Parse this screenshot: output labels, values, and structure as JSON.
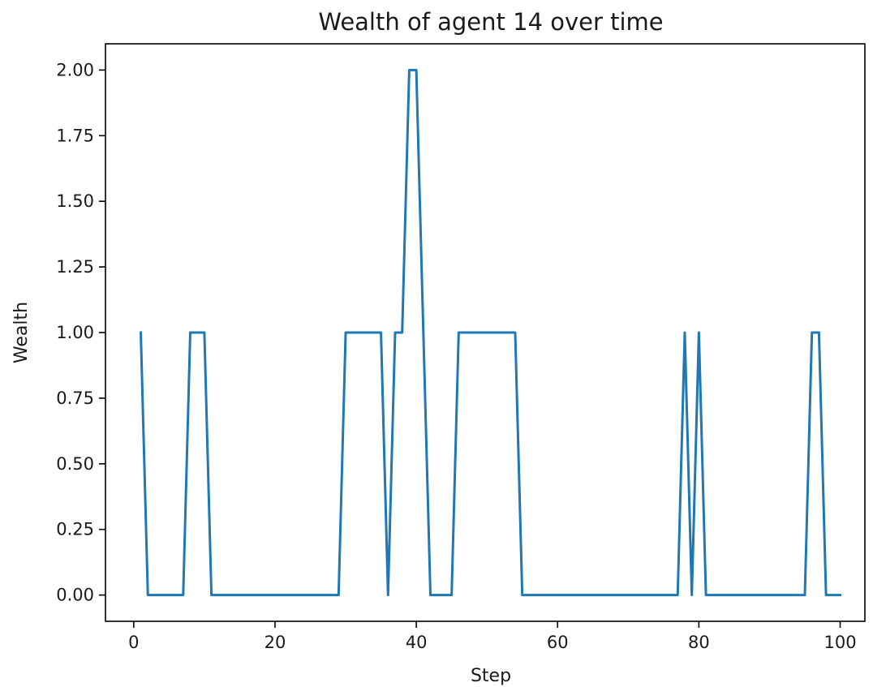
{
  "chart_data": {
    "type": "line",
    "title": "Wealth of agent 14 over time",
    "xlabel": "Step",
    "ylabel": "Wealth",
    "xlim": [
      -4,
      103.5
    ],
    "ylim": [
      -0.1,
      2.1
    ],
    "xticks": [
      0,
      20,
      40,
      60,
      80,
      100
    ],
    "xtick_labels": [
      "0",
      "20",
      "40",
      "60",
      "80",
      "100"
    ],
    "yticks": [
      0,
      0.25,
      0.5,
      0.75,
      1.0,
      1.25,
      1.5,
      1.75,
      2.0
    ],
    "ytick_labels": [
      "0.00",
      "0.25",
      "0.50",
      "0.75",
      "1.00",
      "1.25",
      "1.50",
      "1.75",
      "2.00"
    ],
    "grid": false,
    "series": [
      {
        "color": "#1f77b4",
        "x": [
          1,
          2,
          3,
          4,
          5,
          6,
          7,
          8,
          9,
          10,
          11,
          12,
          13,
          14,
          15,
          16,
          17,
          18,
          19,
          20,
          21,
          22,
          23,
          24,
          25,
          26,
          27,
          28,
          29,
          30,
          31,
          32,
          33,
          34,
          35,
          36,
          37,
          38,
          39,
          40,
          41,
          42,
          43,
          44,
          45,
          46,
          47,
          48,
          49,
          50,
          51,
          52,
          53,
          54,
          55,
          56,
          57,
          58,
          59,
          60,
          61,
          62,
          63,
          64,
          65,
          66,
          67,
          68,
          69,
          70,
          71,
          72,
          73,
          74,
          75,
          76,
          77,
          78,
          79,
          80,
          81,
          82,
          83,
          84,
          85,
          86,
          87,
          88,
          89,
          90,
          91,
          92,
          93,
          94,
          95,
          96,
          97,
          98,
          99,
          100
        ],
        "values": [
          1,
          0,
          0,
          0,
          0,
          0,
          0,
          1,
          1,
          1,
          0,
          0,
          0,
          0,
          0,
          0,
          0,
          0,
          0,
          0,
          0,
          0,
          0,
          0,
          0,
          0,
          0,
          0,
          0,
          1,
          1,
          1,
          1,
          1,
          1,
          0,
          1,
          1,
          2,
          2,
          1,
          0,
          0,
          0,
          0,
          1,
          1,
          1,
          1,
          1,
          1,
          1,
          1,
          1,
          0,
          0,
          0,
          0,
          0,
          0,
          0,
          0,
          0,
          0,
          0,
          0,
          0,
          0,
          0,
          0,
          0,
          0,
          0,
          0,
          0,
          0,
          0,
          1,
          0,
          1,
          0,
          0,
          0,
          0,
          0,
          0,
          0,
          0,
          0,
          0,
          0,
          0,
          0,
          0,
          0,
          1,
          1,
          0,
          0,
          0
        ]
      }
    ]
  }
}
